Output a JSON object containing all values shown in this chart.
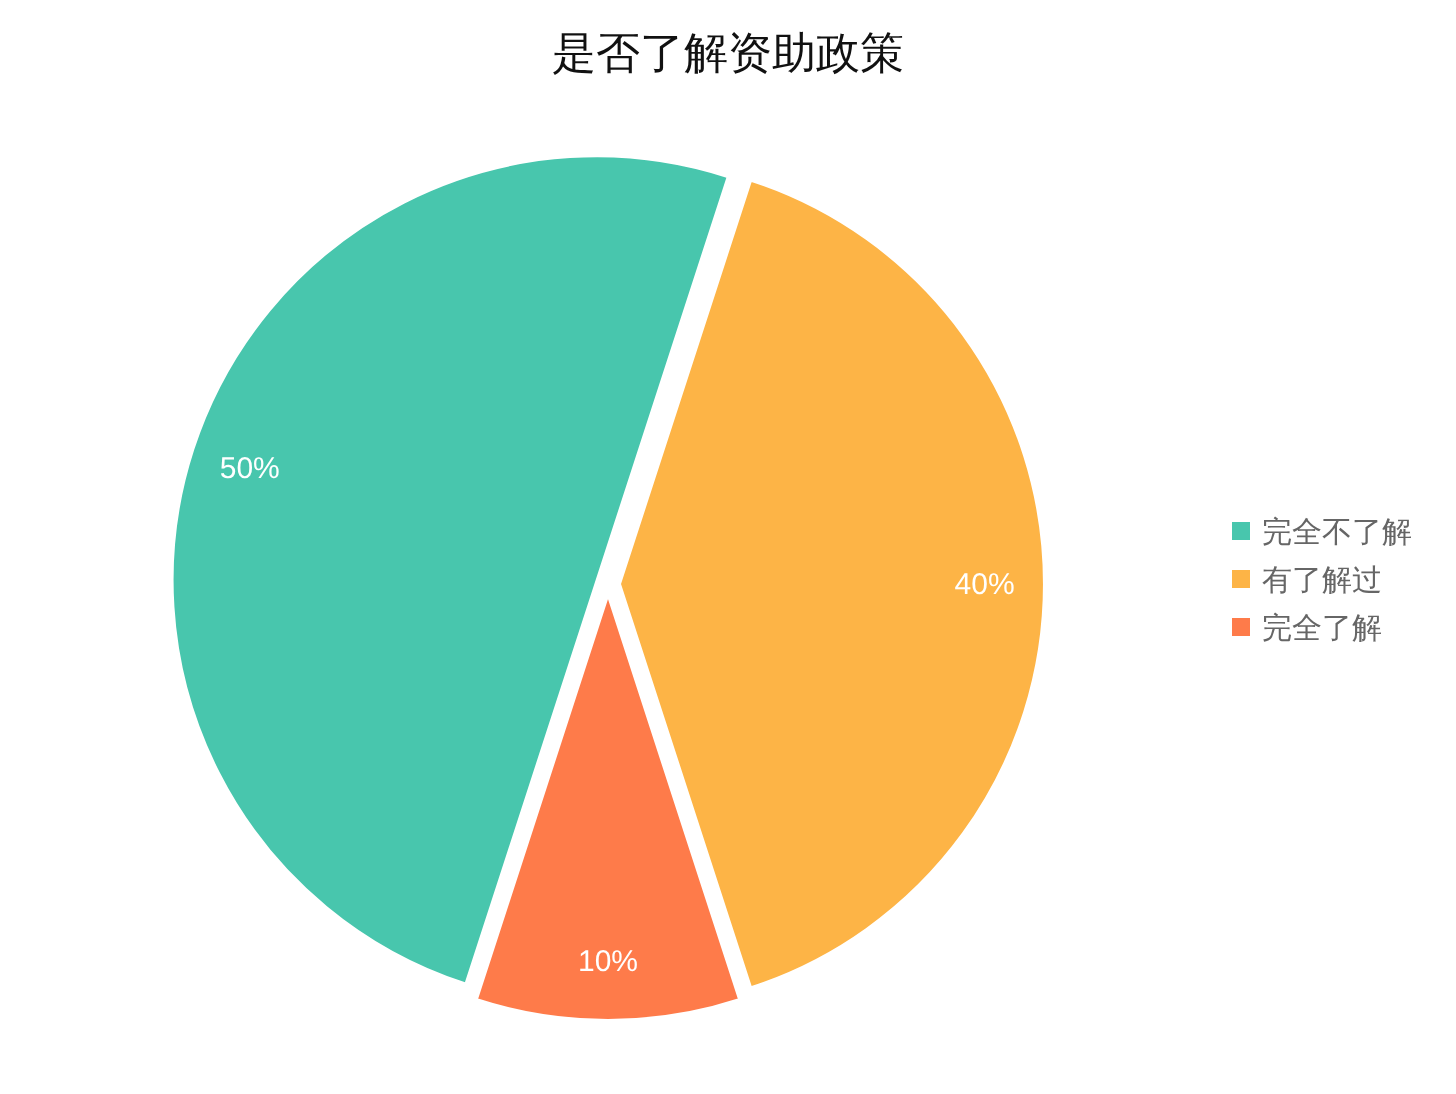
{
  "chart_data": {
    "type": "pie",
    "title": "是否了解资助政策",
    "categories": [
      "完全不了解",
      "有了解过",
      "完全了解"
    ],
    "values": [
      50,
      40,
      10
    ],
    "colors": [
      "#48c6ad",
      "#fdb446",
      "#fe7b4a"
    ],
    "value_labels": [
      "50%",
      "40%",
      "10%"
    ],
    "legend": "right"
  }
}
